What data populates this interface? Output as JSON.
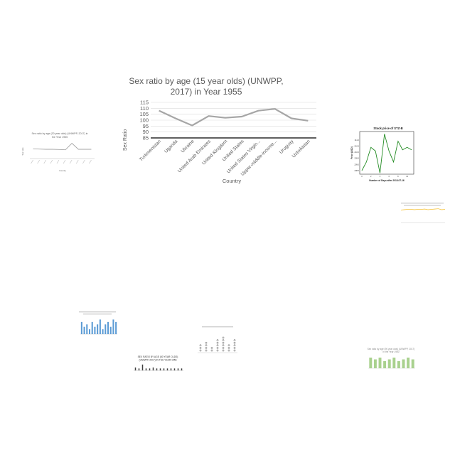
{
  "chart_data": [
    {
      "type": "line",
      "title": "Sex ratio by age (15 year olds) (UNWPP, 2017) in Year 1955",
      "xlabel": "Country",
      "ylabel": "Sex Ratio",
      "categories": [
        "Turkmenistan",
        "Uganda",
        "Ukraine",
        "United Arab Emirates",
        "United Kingdom",
        "United States",
        "United States Virgin...",
        "Upper-middle-income...",
        "Uruguay",
        "Uzbekistan"
      ],
      "series": [
        {
          "values": [
            108,
            101.5,
            95.5,
            103.5,
            102,
            103,
            108,
            109.5,
            101.5,
            99.5
          ]
        }
      ],
      "ylim": [
        85,
        115
      ],
      "yticks": [
        85,
        90,
        95,
        100,
        105,
        110,
        115
      ],
      "grid": true,
      "colors": {
        "line": "#a6a6a6",
        "grid": "#d9d9d9"
      }
    },
    {
      "type": "line",
      "title": "Sex ratio by age (30 year olds) (UNWPP, 2017) in the Year 1955",
      "xlabel": "Country",
      "ylabel": "Sex ratio",
      "series": [
        {
          "values": [
            101,
            100.5,
            100,
            100,
            99.5,
            99,
            113,
            100,
            100,
            100
          ]
        }
      ],
      "ylim": [
        80,
        120
      ],
      "colors": {
        "line": "#a6a6a6"
      }
    },
    {
      "type": "line",
      "title": "Stock price of STZ-B",
      "xlabel": "Number of Days after 2018-07-16",
      "ylabel": "Price (USD)",
      "x": [
        0,
        1,
        2,
        3,
        4,
        5,
        6,
        7,
        8,
        9,
        10,
        11
      ],
      "series": [
        {
          "values": [
            208.5,
            209.2,
            210.4,
            210.1,
            208.3,
            211.5,
            210.1,
            209.2,
            210.9,
            210.2,
            210.4,
            210.2
          ]
        }
      ],
      "xticks": [
        0,
        2,
        4,
        6,
        8,
        10
      ],
      "yticks": [
        208.5,
        209.0,
        209.5,
        210.0,
        210.5,
        211.0
      ],
      "ylim": [
        208.2,
        211.7
      ],
      "colors": {
        "line": "#228b22"
      }
    },
    {
      "type": "line",
      "series": [
        {
          "values": [
            40,
            41,
            42,
            42,
            41,
            42,
            42,
            43,
            41,
            42,
            43,
            44,
            41,
            42
          ]
        }
      ],
      "ylim": [
        0,
        50
      ],
      "colors": {
        "line": "#f5c542"
      }
    },
    {
      "type": "bar",
      "series": [
        {
          "values": [
            5,
            3,
            4,
            2,
            5,
            3,
            4,
            6,
            2,
            4,
            5,
            3,
            6,
            5
          ]
        }
      ],
      "ylim": [
        0,
        7
      ],
      "colors": {
        "bar": "#5b9bd5"
      }
    },
    {
      "type": "scatter",
      "series": [
        {
          "values": [
            3,
            4,
            2,
            5,
            6,
            3,
            5
          ]
        }
      ],
      "ylim": [
        0,
        7
      ],
      "colors": {
        "marker": "#555555"
      }
    },
    {
      "type": "bar",
      "title": "SEX RATIO BY AGE (50 YEAR OLDS) (UNWPP, 2017) IN THE YEAR 1956",
      "series": [
        {
          "values": [
            1.5,
            1,
            3,
            1,
            1,
            1.5,
            1,
            1,
            1,
            1,
            1,
            1,
            1,
            1
          ]
        }
      ],
      "ylim": [
        0,
        4
      ],
      "colors": {
        "bar": "#404040"
      }
    },
    {
      "type": "bar",
      "title": "Sex ratio by age (90 year olds) (UNWPP, 2017) in the Year 1950",
      "series": [
        {
          "values": [
            6,
            5,
            6,
            4,
            5,
            6,
            4,
            5,
            6,
            5
          ]
        }
      ],
      "ylim": [
        0,
        8
      ],
      "colors": {
        "bar": "#a9d18e"
      }
    }
  ]
}
